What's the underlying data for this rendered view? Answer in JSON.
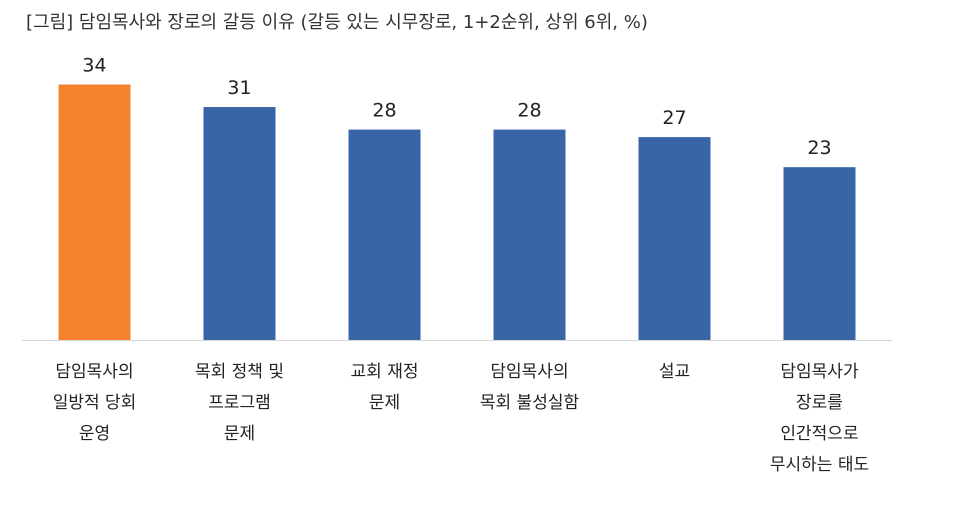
{
  "chart_data": {
    "type": "bar",
    "title": "[그림] 담임목사와 장로의 갈등 이유 (갈등 있는 시무장로, 1+2순위, 상위 6위, %)",
    "categories": [
      [
        "담임목사의",
        "일방적 당회",
        "운영"
      ],
      [
        "목회 정책 및",
        "프로그램",
        "문제"
      ],
      [
        "교회 재정",
        "문제"
      ],
      [
        "담임목사의",
        "목회 불성실함"
      ],
      [
        "설교"
      ],
      [
        "담임목사가",
        "장로를",
        "인간적으로",
        "무시하는 태도"
      ]
    ],
    "values": [
      34,
      31,
      28,
      28,
      27,
      23
    ],
    "value_labels": [
      "34",
      "31",
      "28",
      "28",
      "27",
      "23"
    ],
    "ylim": [
      0,
      35
    ],
    "grid": false,
    "colors": {
      "highlight": "#F5812E",
      "default": "#3765A5"
    },
    "highlight_index": 0
  }
}
